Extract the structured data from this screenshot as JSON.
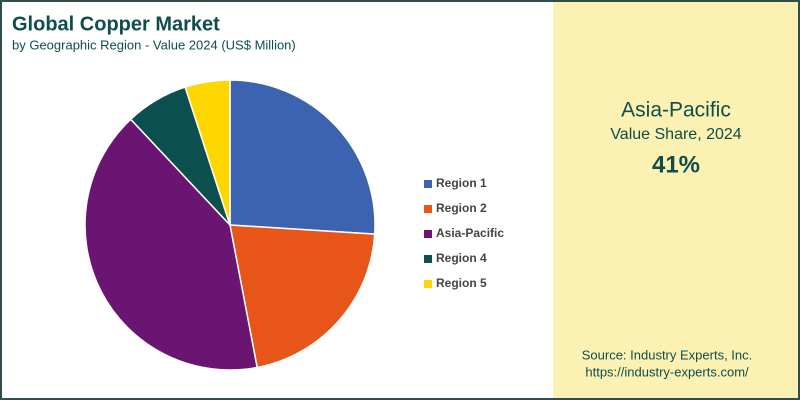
{
  "chart_data": {
    "type": "pie",
    "title": "Global Copper Market",
    "subtitle": "by Geographic Region - Value 2024 (US$ Million)",
    "categories": [
      "Region 1",
      "Region 2",
      "Asia-Pacific",
      "Region 4",
      "Region 5"
    ],
    "values": [
      26,
      21,
      41,
      7,
      5
    ],
    "colors": [
      "#3b63b0",
      "#e85518",
      "#6b1572",
      "#0c4f4f",
      "#ffd700"
    ],
    "legend": "right"
  },
  "highlight": {
    "region": "Asia-Pacific",
    "label": "Value Share, 2024",
    "value": "41%"
  },
  "source": {
    "line1": "Source: Industry Experts, Inc.",
    "line2": "https://industry-experts.com/"
  }
}
